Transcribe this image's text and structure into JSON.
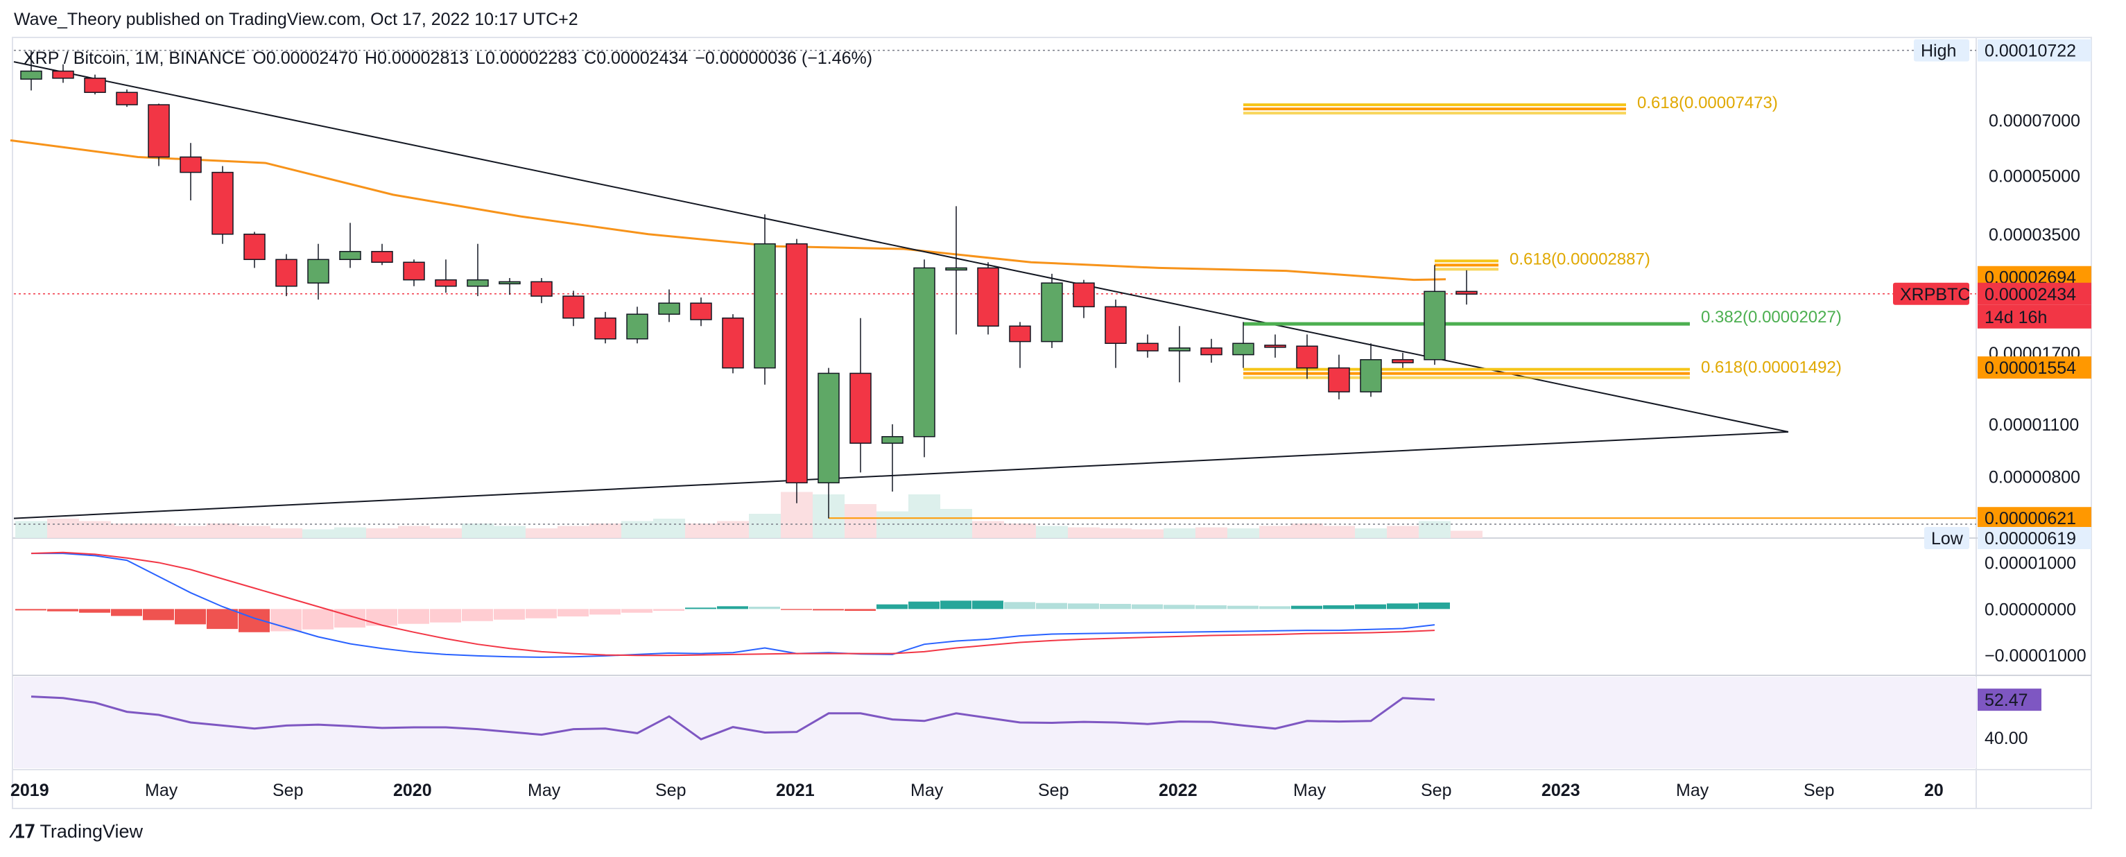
{
  "header": {
    "published": "Wave_Theory published on TradingView.com, Oct 17, 2022 10:17 UTC+2"
  },
  "legend": {
    "symbol": "XRP / Bitcoin, 1M, BINANCE",
    "open": "O0.00002470",
    "high": "H0.00002813",
    "low": "L0.00002283",
    "close": "C0.00002434",
    "change": "−0.00000036 (−1.46%)"
  },
  "branding": {
    "name": "TradingView"
  },
  "colors": {
    "up": "#5fa866",
    "down": "#f23645",
    "ma": "#f7931a",
    "fib_yellow": "#f5c518",
    "fib_orange": "#ff9800",
    "fib_green": "#4caf50",
    "rsi": "#7e57c2",
    "macd": "#2962ff",
    "signal": "#f23645"
  },
  "chart_data": {
    "type": "candlestick",
    "pair": "XRPBTC",
    "quote": "BTC",
    "scale": "log",
    "ylim": [
      5.5e-06,
      0.000116
    ],
    "x_axis_labels": [
      "2019",
      "May",
      "Sep",
      "2020",
      "May",
      "Sep",
      "2021",
      "May",
      "Sep",
      "2022",
      "May",
      "Sep",
      "2023",
      "May",
      "Sep",
      "20"
    ],
    "y_axis_ticks": [
      "0.00007000",
      "0.00005000",
      "0.00003500",
      "0.00001700",
      "0.00001100",
      "0.00000800"
    ],
    "candles": [
      {
        "t": "2019-01",
        "o": 9e-05,
        "h": 0.0001072,
        "l": 8.4e-05,
        "c": 9.45e-05
      },
      {
        "t": "2019-02",
        "o": 9.45e-05,
        "h": 9.85e-05,
        "l": 8.8e-05,
        "c": 9.05e-05
      },
      {
        "t": "2019-03",
        "o": 9.05e-05,
        "h": 9.25e-05,
        "l": 8.2e-05,
        "c": 8.3e-05
      },
      {
        "t": "2019-04",
        "o": 8.3e-05,
        "h": 8.45e-05,
        "l": 7.6e-05,
        "c": 7.7e-05
      },
      {
        "t": "2019-05",
        "o": 7.7e-05,
        "h": 7.75e-05,
        "l": 5.3e-05,
        "c": 5.6e-05
      },
      {
        "t": "2019-06",
        "o": 5.6e-05,
        "h": 6.1e-05,
        "l": 4.3e-05,
        "c": 5.1e-05
      },
      {
        "t": "2019-07",
        "o": 5.1e-05,
        "h": 5.3e-05,
        "l": 3.3e-05,
        "c": 3.5e-05
      },
      {
        "t": "2019-08",
        "o": 3.5e-05,
        "h": 3.55e-05,
        "l": 2.85e-05,
        "c": 3e-05
      },
      {
        "t": "2019-09",
        "o": 3e-05,
        "h": 3.1e-05,
        "l": 2.4e-05,
        "c": 2.55e-05
      },
      {
        "t": "2019-10",
        "o": 2.6e-05,
        "h": 3.3e-05,
        "l": 2.35e-05,
        "c": 3e-05
      },
      {
        "t": "2019-11",
        "o": 3e-05,
        "h": 3.75e-05,
        "l": 2.85e-05,
        "c": 3.15e-05
      },
      {
        "t": "2019-12",
        "o": 3.15e-05,
        "h": 3.3e-05,
        "l": 2.9e-05,
        "c": 2.95e-05
      },
      {
        "t": "2020-01",
        "o": 2.95e-05,
        "h": 3e-05,
        "l": 2.55e-05,
        "c": 2.65e-05
      },
      {
        "t": "2020-02",
        "o": 2.65e-05,
        "h": 3e-05,
        "l": 2.45e-05,
        "c": 2.55e-05
      },
      {
        "t": "2020-03",
        "o": 2.55e-05,
        "h": 3.3e-05,
        "l": 2.4e-05,
        "c": 2.65e-05
      },
      {
        "t": "2020-04",
        "o": 2.6e-05,
        "h": 2.68e-05,
        "l": 2.42e-05,
        "c": 2.62e-05
      },
      {
        "t": "2020-05",
        "o": 2.62e-05,
        "h": 2.68e-05,
        "l": 2.3e-05,
        "c": 2.4e-05
      },
      {
        "t": "2020-06",
        "o": 2.4e-05,
        "h": 2.48e-05,
        "l": 2e-05,
        "c": 2.1e-05
      },
      {
        "t": "2020-07",
        "o": 2.1e-05,
        "h": 2.18e-05,
        "l": 1.8e-05,
        "c": 1.85e-05
      },
      {
        "t": "2020-08",
        "o": 1.85e-05,
        "h": 2.25e-05,
        "l": 1.8e-05,
        "c": 2.15e-05
      },
      {
        "t": "2020-09",
        "o": 2.15e-05,
        "h": 2.5e-05,
        "l": 2.05e-05,
        "c": 2.3e-05
      },
      {
        "t": "2020-10",
        "o": 2.3e-05,
        "h": 2.38e-05,
        "l": 2e-05,
        "c": 2.08e-05
      },
      {
        "t": "2020-11",
        "o": 2.1e-05,
        "h": 2.15e-05,
        "l": 1.5e-05,
        "c": 1.55e-05
      },
      {
        "t": "2020-12",
        "o": 1.55e-05,
        "h": 3.95e-05,
        "l": 1.4e-05,
        "c": 3.3e-05
      },
      {
        "t": "2021-01",
        "o": 3.3e-05,
        "h": 3.4e-05,
        "l": 6.8e-06,
        "c": 7.7e-06
      },
      {
        "t": "2021-02",
        "o": 7.7e-06,
        "h": 1.55e-05,
        "l": 6.2e-06,
        "c": 1.5e-05
      },
      {
        "t": "2021-03",
        "o": 1.5e-05,
        "h": 2.1e-05,
        "l": 8.2e-06,
        "c": 9.8e-06
      },
      {
        "t": "2021-04",
        "o": 9.8e-06,
        "h": 1.1e-05,
        "l": 7.3e-06,
        "c": 1.02e-05
      },
      {
        "t": "2021-05",
        "o": 1.02e-05,
        "h": 3e-05,
        "l": 9e-06,
        "c": 2.85e-05
      },
      {
        "t": "2021-06",
        "o": 2.83e-05,
        "h": 4.15e-05,
        "l": 1.9e-05,
        "c": 2.85e-05
      },
      {
        "t": "2021-07",
        "o": 2.85e-05,
        "h": 2.95e-05,
        "l": 1.9e-05,
        "c": 2e-05
      },
      {
        "t": "2021-08",
        "o": 2e-05,
        "h": 2.05e-05,
        "l": 1.55e-05,
        "c": 1.82e-05
      },
      {
        "t": "2021-09",
        "o": 1.82e-05,
        "h": 2.75e-05,
        "l": 1.75e-05,
        "c": 2.6e-05
      },
      {
        "t": "2021-10",
        "o": 2.6e-05,
        "h": 2.65e-05,
        "l": 2.1e-05,
        "c": 2.25e-05
      },
      {
        "t": "2021-11",
        "o": 2.25e-05,
        "h": 2.35e-05,
        "l": 1.55e-05,
        "c": 1.8e-05
      },
      {
        "t": "2021-12",
        "o": 1.8e-05,
        "h": 1.9e-05,
        "l": 1.65e-05,
        "c": 1.72e-05
      },
      {
        "t": "2022-01",
        "o": 1.72e-05,
        "h": 2e-05,
        "l": 1.42e-05,
        "c": 1.75e-05
      },
      {
        "t": "2022-02",
        "o": 1.75e-05,
        "h": 1.85e-05,
        "l": 1.6e-05,
        "c": 1.68e-05
      },
      {
        "t": "2022-03",
        "o": 1.68e-05,
        "h": 2.05e-05,
        "l": 1.55e-05,
        "c": 1.8e-05
      },
      {
        "t": "2022-04",
        "o": 1.78e-05,
        "h": 1.9e-05,
        "l": 1.65e-05,
        "c": 1.77e-05
      },
      {
        "t": "2022-05",
        "o": 1.77e-05,
        "h": 1.9e-05,
        "l": 1.45e-05,
        "c": 1.55e-05
      },
      {
        "t": "2022-06",
        "o": 1.55e-05,
        "h": 1.68e-05,
        "l": 1.28e-05,
        "c": 1.34e-05
      },
      {
        "t": "2022-07",
        "o": 1.34e-05,
        "h": 1.8e-05,
        "l": 1.3e-05,
        "c": 1.63e-05
      },
      {
        "t": "2022-08",
        "o": 1.63e-05,
        "h": 1.7e-05,
        "l": 1.55e-05,
        "c": 1.6e-05
      },
      {
        "t": "2022-09",
        "o": 1.63e-05,
        "h": 2.9e-05,
        "l": 1.58e-05,
        "c": 2.47e-05
      },
      {
        "t": "2022-10",
        "o": 2.47e-05,
        "h": 2.81e-05,
        "l": 2.28e-05,
        "c": 2.43e-05
      }
    ],
    "moving_average": [
      {
        "t": "2019-01",
        "v": 6.2e-05
      },
      {
        "t": "2019-05",
        "v": 5.6e-05
      },
      {
        "t": "2019-09",
        "v": 5.4e-05
      },
      {
        "t": "2020-01",
        "v": 4.45e-05
      },
      {
        "t": "2020-05",
        "v": 3.9e-05
      },
      {
        "t": "2020-09",
        "v": 3.5e-05
      },
      {
        "t": "2021-01",
        "v": 3.25e-05
      },
      {
        "t": "2021-05",
        "v": 3.2e-05
      },
      {
        "t": "2021-09",
        "v": 2.95e-05
      },
      {
        "t": "2022-01",
        "v": 2.85e-05
      },
      {
        "t": "2022-05",
        "v": 2.8e-05
      },
      {
        "t": "2022-09",
        "v": 2.65e-05
      },
      {
        "t": "2022-10",
        "v": 2.66e-05
      }
    ],
    "trendlines": [
      {
        "name": "descending-resistance",
        "from": {
          "t": "2019-01",
          "v": 0.0001
        },
        "to": {
          "t": "2023-07",
          "v": 1.05e-05
        }
      },
      {
        "name": "ascending-support",
        "from": {
          "t": "2019-01",
          "v": 6.2e-06
        },
        "to": {
          "t": "2023-07",
          "v": 1.05e-05
        }
      }
    ],
    "fib_levels": [
      {
        "label": "0.618(0.00007473)",
        "value": 7.473e-05,
        "from": "2022-03",
        "to": "2023-03",
        "color": "fib_yellow"
      },
      {
        "label": "0.618(0.00002887)",
        "value": 2.887e-05,
        "from": "2022-09",
        "to": "2022-11",
        "color": "fib_yellow"
      },
      {
        "label": "0.382(0.00002027)",
        "value": 2.027e-05,
        "from": "2022-03",
        "to": "2023-05",
        "color": "fib_green"
      },
      {
        "label": "0.618(0.00001492)",
        "value": 1.492e-05,
        "from": "2022-03",
        "to": "2023-05",
        "color": "fib_yellow"
      }
    ],
    "price_labels": [
      {
        "text": "0.00010722",
        "tag": "High",
        "kind": "high",
        "value": 0.00010722
      },
      {
        "text": "0.00002694",
        "kind": "ma",
        "value": 2.694e-05
      },
      {
        "text": "0.00002434",
        "kind": "last",
        "tag": "XRPBTC",
        "countdown": "14d 16h",
        "value": 2.434e-05
      },
      {
        "text": "0.00001554",
        "kind": "level",
        "value": 1.554e-05
      },
      {
        "text": "0.00000621",
        "kind": "level",
        "value": 6.21e-06
      },
      {
        "text": "0.00000619",
        "tag": "Low",
        "kind": "low",
        "value": 6.19e-06
      }
    ],
    "volume": [
      0.35,
      0.4,
      0.35,
      0.3,
      0.3,
      0.25,
      0.3,
      0.25,
      0.2,
      0.18,
      0.22,
      0.2,
      0.25,
      0.2,
      0.3,
      0.25,
      0.2,
      0.25,
      0.3,
      0.35,
      0.4,
      0.3,
      0.35,
      0.5,
      0.95,
      0.9,
      0.7,
      0.55,
      0.9,
      0.6,
      0.35,
      0.3,
      0.25,
      0.22,
      0.2,
      0.18,
      0.2,
      0.22,
      0.2,
      0.25,
      0.3,
      0.25,
      0.2,
      0.25,
      0.35,
      0.15
    ],
    "macd": {
      "ylim": [
        -1.4e-05,
        1.5e-05
      ],
      "ticks": [
        "0.00001000",
        "0.00000000",
        "−0.00001000"
      ],
      "histogram": [
        -0.3,
        -0.5,
        -0.8,
        -1.5,
        -2.4,
        -3.3,
        -4.3,
        -5.0,
        -4.8,
        -4.4,
        -4.0,
        -3.6,
        -3.2,
        -2.9,
        -2.6,
        -2.3,
        -2.0,
        -1.6,
        -1.2,
        -0.8,
        -0.4,
        0.3,
        0.6,
        0.5,
        -0.2,
        -0.3,
        -0.4,
        1.0,
        1.6,
        1.8,
        1.8,
        1.5,
        1.3,
        1.2,
        1.1,
        1.0,
        0.9,
        0.8,
        0.7,
        0.6,
        0.7,
        0.8,
        1.0,
        1.2,
        1.4
      ],
      "macd_line": [
        12.0,
        12.0,
        11.5,
        10.5,
        7.0,
        3.5,
        0.5,
        -2.0,
        -4.0,
        -6.0,
        -7.5,
        -8.5,
        -9.3,
        -9.8,
        -10.1,
        -10.3,
        -10.4,
        -10.3,
        -10.1,
        -9.8,
        -9.5,
        -9.6,
        -9.4,
        -8.4,
        -9.6,
        -9.4,
        -9.7,
        -9.8,
        -7.6,
        -6.9,
        -6.5,
        -5.8,
        -5.4,
        -5.3,
        -5.2,
        -5.1,
        -5.0,
        -4.9,
        -4.8,
        -4.7,
        -4.6,
        -4.6,
        -4.4,
        -4.2,
        -3.4
      ],
      "signal_line": [
        12.0,
        12.2,
        11.8,
        11.0,
        10.0,
        8.5,
        6.5,
        4.5,
        2.5,
        0.5,
        -1.5,
        -3.5,
        -5.0,
        -6.4,
        -7.6,
        -8.5,
        -9.2,
        -9.6,
        -9.9,
        -10.0,
        -10.0,
        -9.9,
        -9.8,
        -9.7,
        -9.6,
        -9.6,
        -9.6,
        -9.6,
        -9.2,
        -8.4,
        -7.8,
        -7.2,
        -6.8,
        -6.5,
        -6.3,
        -6.1,
        -5.9,
        -5.7,
        -5.6,
        -5.5,
        -5.3,
        -5.2,
        -5.1,
        -4.9,
        -4.6
      ]
    },
    "rsi": {
      "ylim": [
        30,
        60
      ],
      "ticks": [
        "52.47",
        "40.00"
      ],
      "current": "52.47",
      "values": [
        53.5,
        53.0,
        51.5,
        48.5,
        47.5,
        45.0,
        44.0,
        43.0,
        44.0,
        44.3,
        43.8,
        43.2,
        43.4,
        43.4,
        42.8,
        41.9,
        41.0,
        42.8,
        43.0,
        41.5,
        47.0,
        39.5,
        43.5,
        41.7,
        41.9,
        48.0,
        48.0,
        46.0,
        45.5,
        48.0,
        46.5,
        45.0,
        44.9,
        45.2,
        45.0,
        44.5,
        45.3,
        45.2,
        44.0,
        43.0,
        45.5,
        45.3,
        45.5,
        53.0,
        52.5
      ]
    }
  }
}
